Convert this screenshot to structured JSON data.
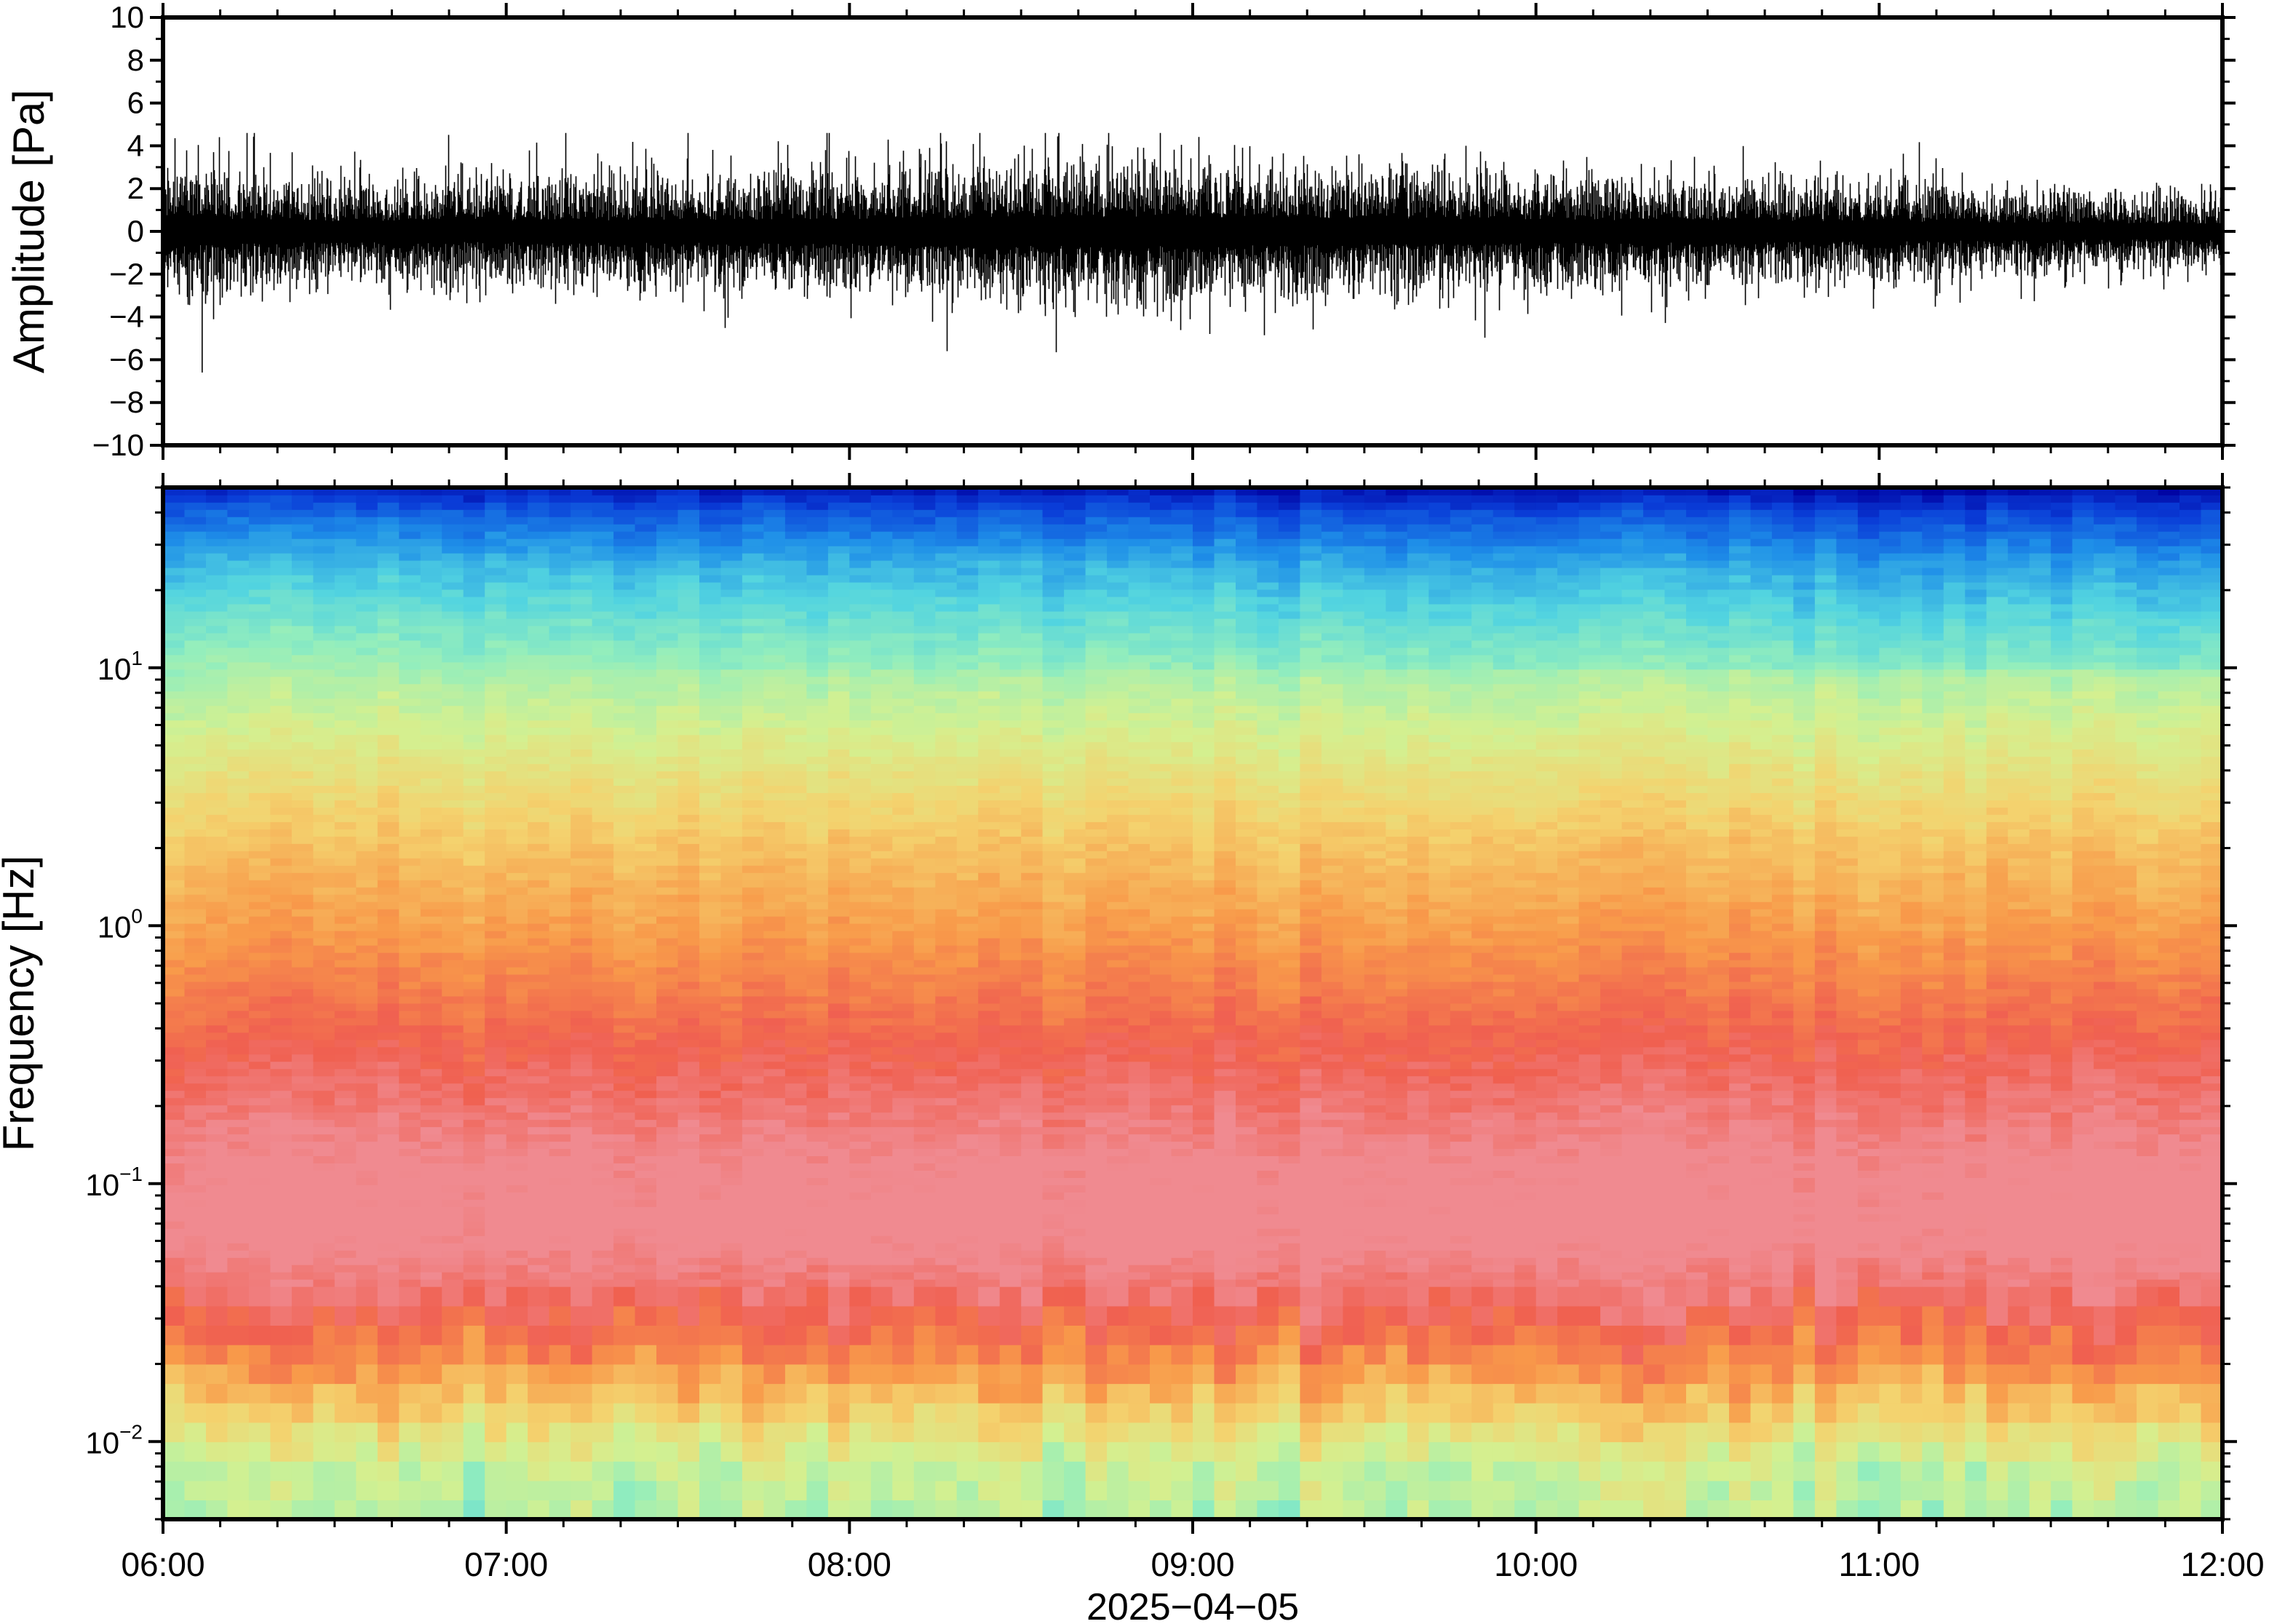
{
  "chart_data": [
    {
      "type": "line",
      "panel": "waveform",
      "ylabel": "Amplitude [Pa]",
      "xlim": [
        "06:00",
        "12:00"
      ],
      "ylim": [
        -10,
        10
      ],
      "yticks": [
        -10,
        -8,
        -6,
        -4,
        -2,
        0,
        2,
        4,
        6,
        8,
        10
      ],
      "ytick_labels": [
        "−10",
        "−8",
        "−6",
        "−4",
        "−2",
        "0",
        "2",
        "4",
        "6",
        "8",
        "10"
      ],
      "grid": false,
      "series": [
        {
          "color": "#000000",
          "envelope_time": [
            "06:00",
            "06:30",
            "07:00",
            "07:30",
            "08:00",
            "08:30",
            "09:00",
            "09:30",
            "10:00",
            "10:30",
            "11:00",
            "11:30",
            "12:00"
          ],
          "envelope_typical_amplitude": [
            2.6,
            1.9,
            2.0,
            2.1,
            2.3,
            2.6,
            2.7,
            2.4,
            2.2,
            2.0,
            1.8,
            1.6,
            1.4
          ],
          "peak_max": 4.6,
          "peak_min": -6.6
        }
      ]
    },
    {
      "type": "heatmap",
      "panel": "spectrogram",
      "ylabel": "Frequency [Hz]",
      "xlabel": "2025−04−05",
      "y_scale": "log",
      "xlim": [
        "06:00",
        "12:00"
      ],
      "ylim": [
        0.005,
        50
      ],
      "xtick_labels": [
        "06:00",
        "07:00",
        "08:00",
        "09:00",
        "10:00",
        "11:00",
        "12:00"
      ],
      "yticks": [
        {
          "value": 0.01,
          "base": "10",
          "exp": "−2"
        },
        {
          "value": 0.1,
          "base": "10",
          "exp": "−1"
        },
        {
          "value": 1,
          "base": "10",
          "exp": "0"
        },
        {
          "value": 10,
          "base": "10",
          "exp": "1"
        }
      ],
      "colormap": [
        "#0000a0",
        "#0a3ed8",
        "#1e8ee8",
        "#52d4e0",
        "#94eebc",
        "#d4f090",
        "#f4d26e",
        "#f89a4a",
        "#f06050",
        "#f08a90"
      ],
      "profile_frequency_hz": [
        0.005,
        0.008,
        0.012,
        0.018,
        0.025,
        0.04,
        0.07,
        0.12,
        0.25,
        0.5,
        1,
        2,
        4,
        8,
        15,
        25,
        40,
        50
      ],
      "profile_level": [
        4.5,
        4.8,
        5.8,
        6.8,
        7.6,
        8.6,
        9.3,
        9.1,
        8.3,
        7.6,
        6.9,
        6.3,
        5.5,
        4.6,
        3.6,
        2.7,
        1.5,
        0.6
      ]
    }
  ]
}
